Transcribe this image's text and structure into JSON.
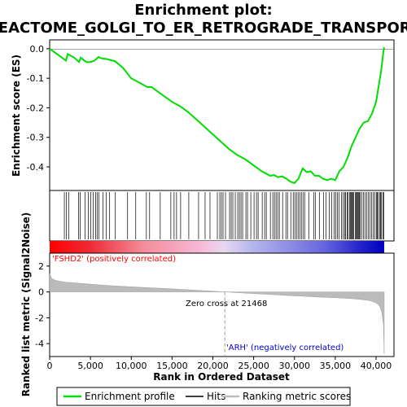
{
  "chart_data": {
    "type": "line",
    "title_line1": "Enrichment plot:",
    "title_line2": "REACTOME_GOLGI_TO_ER_RETROGRADE_TRANSPORT",
    "es_panel": {
      "ylabel": "Enrichment score (ES)",
      "ylim": [
        -0.48,
        0.03
      ],
      "yticks": [
        0.0,
        -0.1,
        -0.2,
        -0.3,
        -0.4
      ],
      "ytick_labels": [
        "0.0",
        "-0.1",
        "-0.2",
        "-0.3",
        "-0.4"
      ],
      "series": [
        {
          "name": "Enrichment profile",
          "color": "#00dd00",
          "x": [
            0,
            1000,
            2000,
            2200,
            3000,
            3600,
            3800,
            4500,
            5000,
            5500,
            6000,
            6300,
            7000,
            8000,
            9000,
            10000,
            11000,
            12000,
            12500,
            13000,
            14000,
            15000,
            16000,
            17000,
            18000,
            19000,
            20000,
            21000,
            22000,
            23000,
            24000,
            25000,
            26000,
            27000,
            27500,
            28000,
            28500,
            29000,
            29500,
            30000,
            30500,
            31000,
            31500,
            32000,
            32500,
            33000,
            33500,
            34000,
            34500,
            35000,
            35500,
            36000,
            36500,
            37000,
            37500,
            38000,
            38500,
            39000,
            39500,
            40000,
            40300,
            40600,
            40900,
            41000
          ],
          "y": [
            0.0,
            -0.02,
            -0.04,
            -0.018,
            -0.03,
            -0.045,
            -0.03,
            -0.045,
            -0.045,
            -0.04,
            -0.028,
            -0.032,
            -0.035,
            -0.042,
            -0.065,
            -0.1,
            -0.115,
            -0.13,
            -0.13,
            -0.14,
            -0.16,
            -0.18,
            -0.195,
            -0.215,
            -0.24,
            -0.265,
            -0.29,
            -0.315,
            -0.34,
            -0.36,
            -0.375,
            -0.395,
            -0.415,
            -0.43,
            -0.428,
            -0.435,
            -0.432,
            -0.44,
            -0.45,
            -0.455,
            -0.44,
            -0.405,
            -0.418,
            -0.415,
            -0.43,
            -0.43,
            -0.44,
            -0.445,
            -0.44,
            -0.445,
            -0.415,
            -0.4,
            -0.37,
            -0.33,
            -0.3,
            -0.27,
            -0.25,
            -0.245,
            -0.22,
            -0.18,
            -0.13,
            -0.08,
            -0.01,
            0.005
          ]
        }
      ]
    },
    "hits_panel": {
      "hit_positions": [
        1800,
        2050,
        2350,
        3550,
        3750,
        4350,
        4750,
        5050,
        5350,
        5650,
        5850,
        6050,
        6550,
        6950,
        7350,
        8050,
        9550,
        10550,
        11850,
        12250,
        13550,
        14850,
        15250,
        15550,
        16050,
        17050,
        18250,
        19050,
        19650,
        20550,
        20850,
        21050,
        21250,
        21550,
        22050,
        22250,
        22450,
        22750,
        23050,
        23250,
        23450,
        23650,
        24050,
        24250,
        24650,
        25050,
        25350,
        25550,
        26050,
        26350,
        26550,
        27050,
        27350,
        27550,
        27750,
        27950,
        28150,
        28550,
        28950,
        29150,
        29550,
        29850,
        30050,
        30250,
        30450,
        30650,
        30850,
        31050,
        31250,
        31750,
        32350,
        32550,
        33050,
        33550,
        33850,
        34250,
        34550,
        34850,
        35050,
        35250,
        35450,
        35750,
        35950,
        36150,
        36250,
        36450,
        36550,
        36750,
        36850,
        36950,
        37050,
        37150,
        37250,
        37450,
        37550,
        37650,
        37750,
        37850,
        37950,
        38050,
        38250,
        38450,
        38650,
        38850,
        39050,
        39250,
        39450,
        39650,
        39850,
        40050,
        40150,
        40250,
        40450,
        40550,
        40650,
        40850,
        40950
      ]
    },
    "metric_panel": {
      "ylabel": "Ranked list metric (Signal2Noise)",
      "ylim": [
        -5,
        3
      ],
      "yticks": [
        2,
        0,
        -2,
        -4
      ],
      "ytick_labels": [
        "2",
        "0",
        "-2",
        "-4"
      ],
      "x": [
        0,
        200,
        500,
        1000,
        2000,
        4000,
        6000,
        8000,
        10000,
        12000,
        14000,
        16000,
        18000,
        20000,
        21468,
        23000,
        25000,
        27000,
        29000,
        31000,
        33000,
        35000,
        37000,
        38000,
        39000,
        39500,
        40000,
        40300,
        40500,
        40700,
        40900,
        41000
      ],
      "values": [
        1.4,
        1.1,
        0.95,
        0.85,
        0.75,
        0.65,
        0.55,
        0.47,
        0.4,
        0.33,
        0.27,
        0.2,
        0.13,
        0.06,
        0.0,
        -0.06,
        -0.13,
        -0.2,
        -0.27,
        -0.33,
        -0.4,
        -0.45,
        -0.52,
        -0.58,
        -0.65,
        -0.72,
        -0.85,
        -1.0,
        -1.2,
        -1.6,
        -2.5,
        -4.8
      ],
      "zero_cross_label": "Zero cross at 21468",
      "zero_cross_rank": 21468,
      "pos_label": "'FSHD2' (positively correlated)",
      "neg_label": "'ARH' (negatively correlated)",
      "pos_color": "#ff0000",
      "neg_color": "#0000cc"
    },
    "xlabel": "Rank in Ordered Dataset",
    "xlim": [
      0,
      42000
    ],
    "xticks": [
      0,
      5000,
      10000,
      15000,
      20000,
      25000,
      30000,
      35000,
      40000
    ],
    "xtick_labels": [
      "0",
      "5,000",
      "10,000",
      "15,000",
      "20,000",
      "25,000",
      "30,000",
      "35,000",
      "40,000"
    ],
    "legend": [
      {
        "label": "Enrichment profile",
        "color": "#00dd00"
      },
      {
        "label": "Hits",
        "color": "#000000"
      },
      {
        "label": "Ranking metric scores",
        "color": "#bbbbbb"
      }
    ]
  }
}
